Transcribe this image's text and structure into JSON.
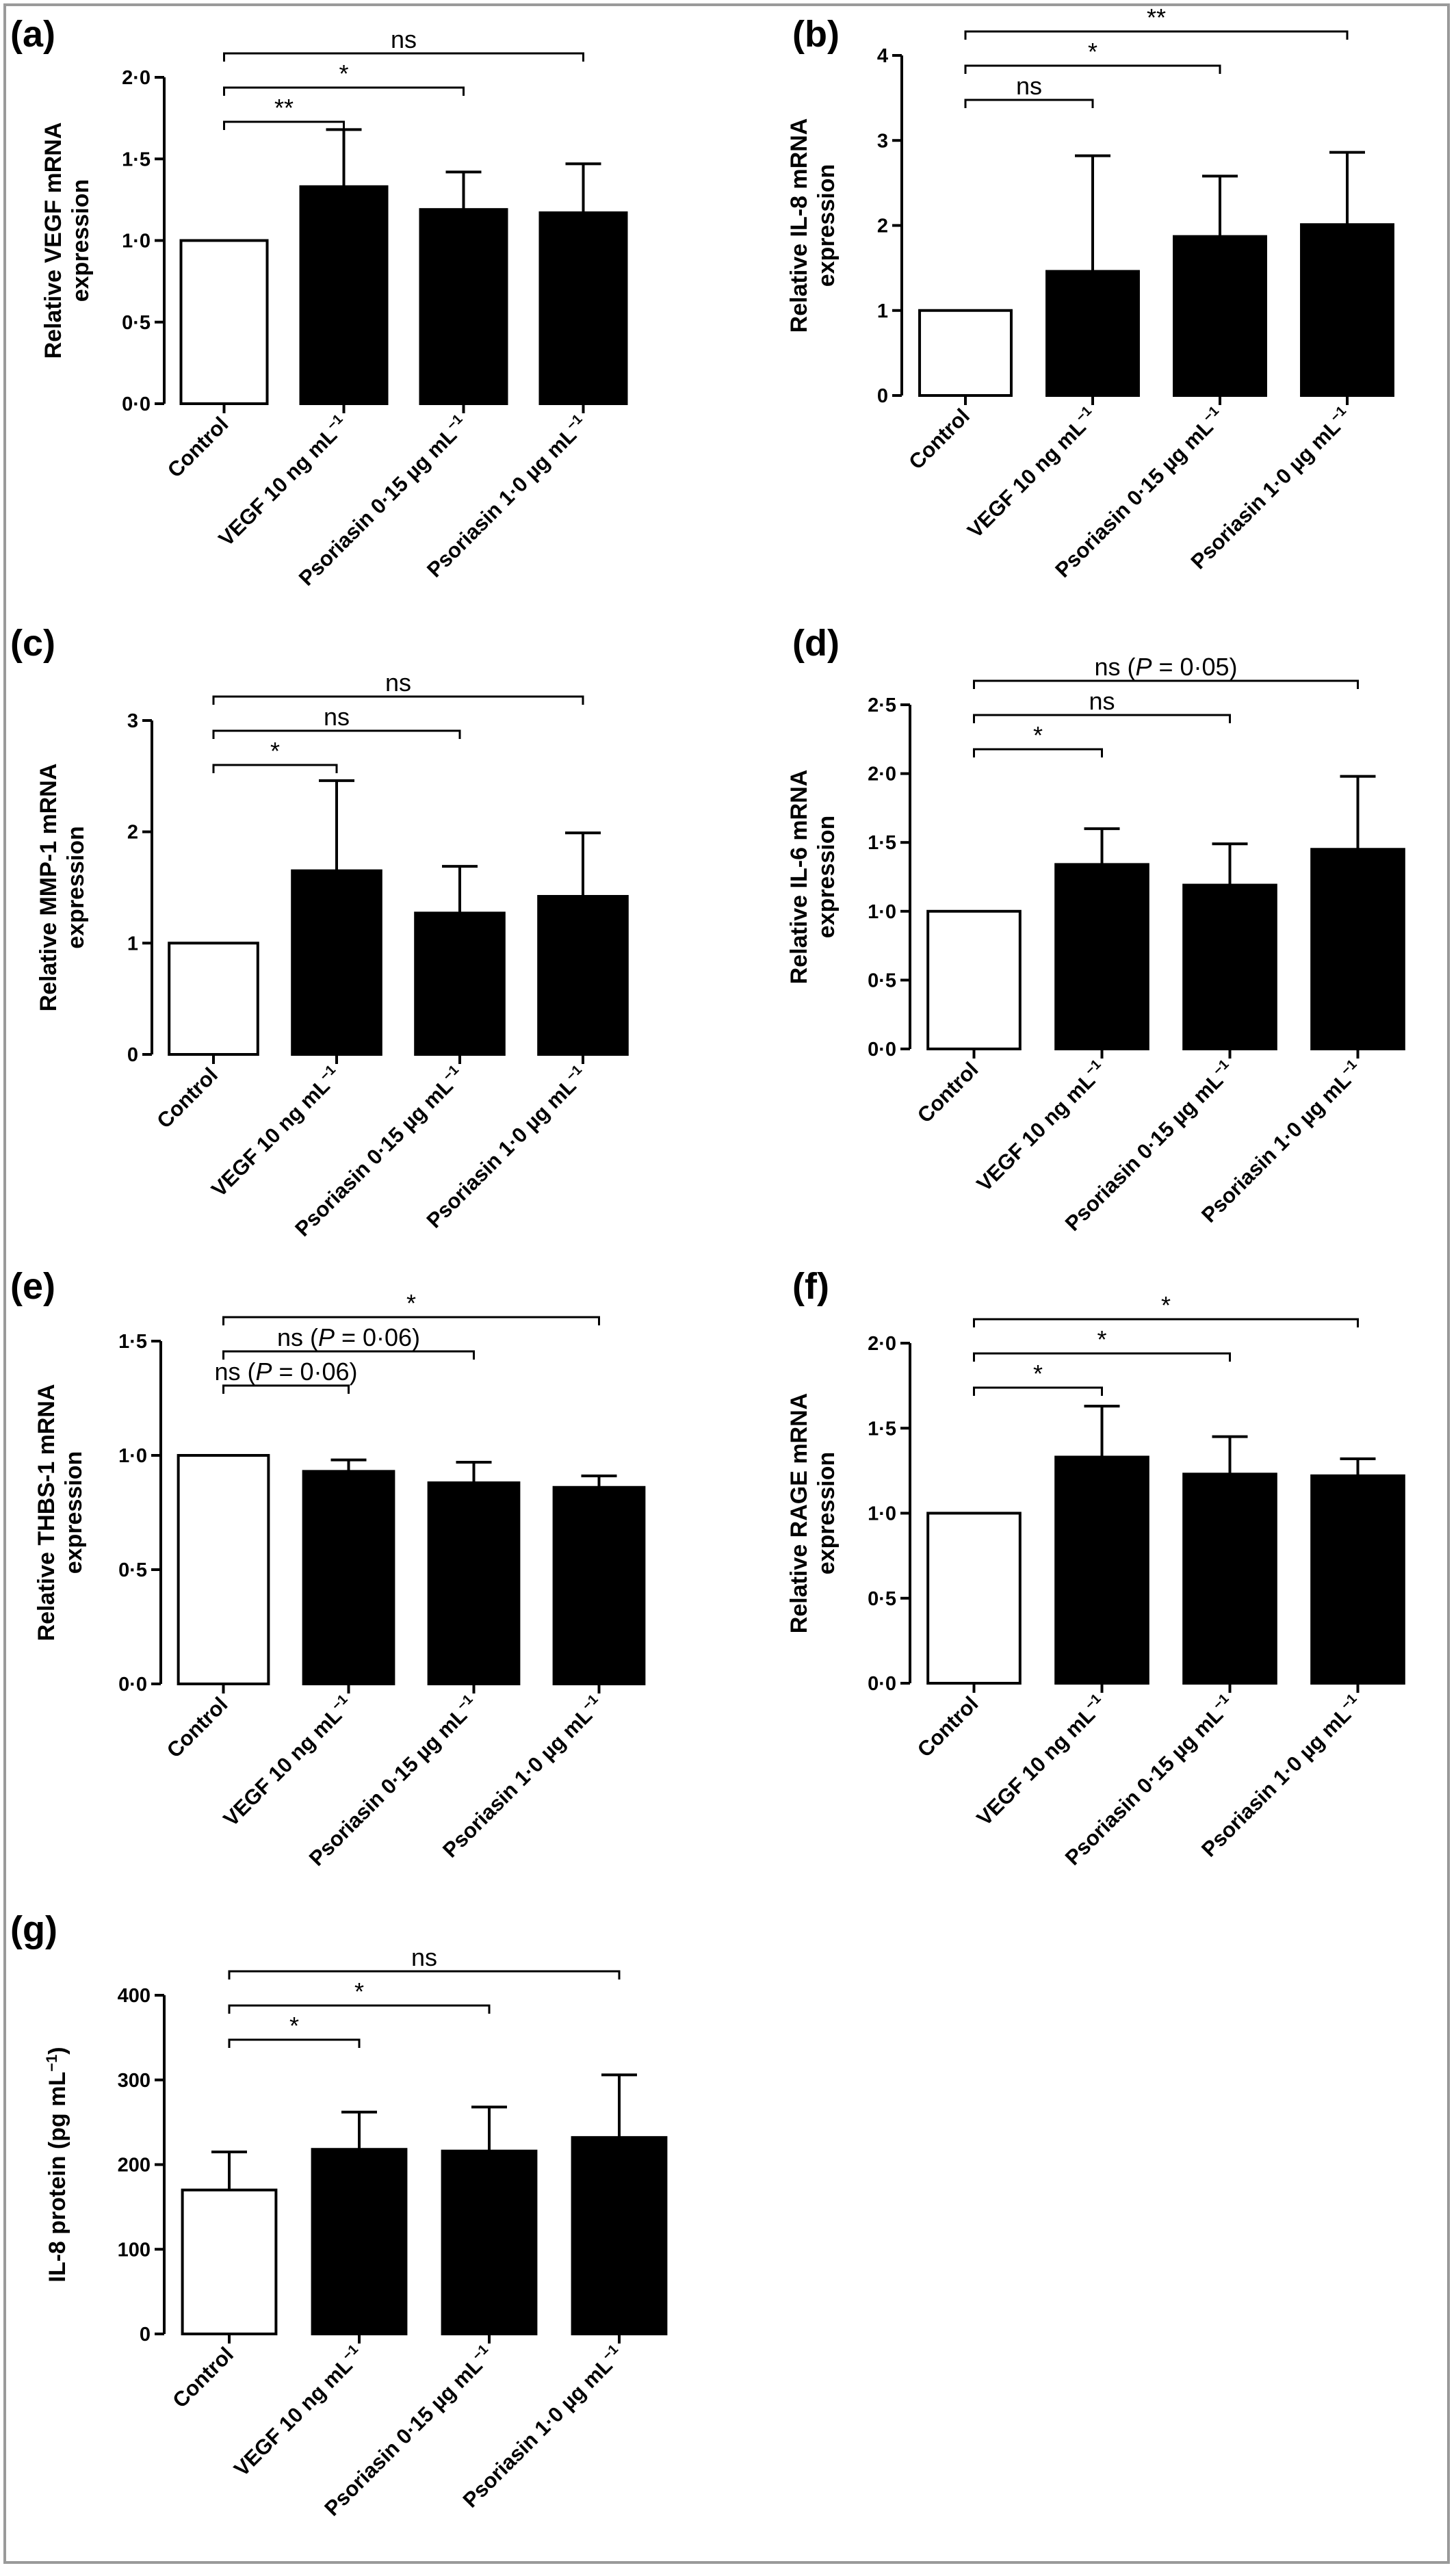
{
  "chart_data": [
    {
      "type": "bar",
      "panel": "(a)",
      "categories": [
        "Control",
        "VEGF 10 ng mL",
        "Psoriasin 0·15 µg mL",
        "Psoriasin 1·0 µg mL"
      ],
      "category_unit_superscript": "−1",
      "ylabel": [
        "Relative VEGF mRNA",
        "expression"
      ],
      "ylim": [
        0,
        2.0
      ],
      "yticks": [
        0,
        0.5,
        1.0,
        1.5,
        2.0
      ],
      "ytick_labels": [
        "0·0",
        "0·5",
        "1·0",
        "1·5",
        "2·0"
      ],
      "values": [
        1.0,
        1.33,
        1.19,
        1.17
      ],
      "errors": [
        0,
        0.35,
        0.23,
        0.3
      ],
      "fills": [
        "#ffffff",
        "#000000",
        "#000000",
        "#000000"
      ],
      "brackets": [
        {
          "from": 0,
          "to": 1,
          "label": "**"
        },
        {
          "from": 0,
          "to": 2,
          "label": "*"
        },
        {
          "from": 0,
          "to": 3,
          "label": "ns"
        }
      ]
    },
    {
      "type": "bar",
      "panel": "(b)",
      "categories": [
        "Control",
        "VEGF 10 ng mL",
        "Psoriasin 0·15 µg mL",
        "Psoriasin 1·0 µg mL"
      ],
      "category_unit_superscript": "−1",
      "ylabel": [
        "Relative IL-8 mRNA",
        "expression"
      ],
      "ylim": [
        0,
        4
      ],
      "yticks": [
        0,
        1,
        2,
        3,
        4
      ],
      "ytick_labels": [
        "0",
        "1",
        "2",
        "3",
        "4"
      ],
      "values": [
        1.0,
        1.46,
        1.87,
        2.01
      ],
      "errors": [
        0,
        1.36,
        0.71,
        0.85
      ],
      "fills": [
        "#ffffff",
        "#000000",
        "#000000",
        "#000000"
      ],
      "brackets": [
        {
          "from": 0,
          "to": 1,
          "label": "ns"
        },
        {
          "from": 0,
          "to": 2,
          "label": "*"
        },
        {
          "from": 0,
          "to": 3,
          "label": "**"
        }
      ]
    },
    {
      "type": "bar",
      "panel": "(c)",
      "categories": [
        "Control",
        "VEGF 10 ng mL",
        "Psoriasin 0·15 µg mL",
        "Psoriasin 1·0 µg mL"
      ],
      "category_unit_superscript": "−1",
      "ylabel": [
        "Relative MMP-1 mRNA",
        "expression"
      ],
      "ylim": [
        0,
        3
      ],
      "yticks": [
        0,
        1,
        2,
        3
      ],
      "ytick_labels": [
        "0",
        "1",
        "2",
        "3"
      ],
      "values": [
        1.0,
        1.65,
        1.27,
        1.42
      ],
      "errors": [
        0,
        0.81,
        0.42,
        0.57
      ],
      "fills": [
        "#ffffff",
        "#000000",
        "#000000",
        "#000000"
      ],
      "brackets": [
        {
          "from": 0,
          "to": 1,
          "label": "*"
        },
        {
          "from": 0,
          "to": 2,
          "label": "ns"
        },
        {
          "from": 0,
          "to": 3,
          "label": "ns"
        }
      ]
    },
    {
      "type": "bar",
      "panel": "(d)",
      "categories": [
        "Control",
        "VEGF 10 ng mL",
        "Psoriasin 0·15 µg mL",
        "Psoriasin 1·0 µg mL"
      ],
      "category_unit_superscript": "−1",
      "ylabel": [
        "Relative IL-6 mRNA",
        "expression"
      ],
      "ylim": [
        0,
        2.5
      ],
      "yticks": [
        0,
        0.5,
        1.0,
        1.5,
        2.0,
        2.5
      ],
      "ytick_labels": [
        "0·0",
        "0·5",
        "1·0",
        "1·5",
        "2·0",
        "2·5"
      ],
      "values": [
        1.0,
        1.34,
        1.19,
        1.45
      ],
      "errors": [
        0,
        0.26,
        0.3,
        0.53
      ],
      "fills": [
        "#ffffff",
        "#000000",
        "#000000",
        "#000000"
      ],
      "brackets": [
        {
          "from": 0,
          "to": 1,
          "label": "*"
        },
        {
          "from": 0,
          "to": 2,
          "label": "ns"
        },
        {
          "from": 0,
          "to": 3,
          "label": "ns (P = 0·05)"
        }
      ]
    },
    {
      "type": "bar",
      "panel": "(e)",
      "categories": [
        "Control",
        "VEGF 10 ng mL",
        "Psoriasin 0·15 µg mL",
        "Psoriasin 1·0 µg mL"
      ],
      "category_unit_superscript": "−1",
      "ylabel": [
        "Relative THBS-1 mRNA",
        "expression"
      ],
      "ylim": [
        0,
        1.5
      ],
      "yticks": [
        0,
        0.5,
        1.0,
        1.5
      ],
      "ytick_labels": [
        "0·0",
        "0·5",
        "1·0",
        "1·5"
      ],
      "values": [
        1.0,
        0.93,
        0.88,
        0.86
      ],
      "errors": [
        0,
        0.05,
        0.09,
        0.05
      ],
      "fills": [
        "#ffffff",
        "#000000",
        "#000000",
        "#000000"
      ],
      "brackets": [
        {
          "from": 0,
          "to": 1,
          "label": "ns (P = 0·06)"
        },
        {
          "from": 0,
          "to": 2,
          "label": "ns (P = 0·06)"
        },
        {
          "from": 0,
          "to": 3,
          "label": "*"
        }
      ]
    },
    {
      "type": "bar",
      "panel": "(f)",
      "categories": [
        "Control",
        "VEGF 10 ng mL",
        "Psoriasin 0·15 µg mL",
        "Psoriasin 1·0 µg mL"
      ],
      "category_unit_superscript": "−1",
      "ylabel": [
        "Relative RAGE mRNA",
        "expression"
      ],
      "ylim": [
        0,
        2.0
      ],
      "yticks": [
        0,
        0.5,
        1.0,
        1.5,
        2.0
      ],
      "ytick_labels": [
        "0·0",
        "0·5",
        "1·0",
        "1·5",
        "2·0"
      ],
      "values": [
        1.0,
        1.33,
        1.23,
        1.22
      ],
      "errors": [
        0,
        0.3,
        0.22,
        0.1
      ],
      "fills": [
        "#ffffff",
        "#000000",
        "#000000",
        "#000000"
      ],
      "brackets": [
        {
          "from": 0,
          "to": 1,
          "label": "*"
        },
        {
          "from": 0,
          "to": 2,
          "label": "*"
        },
        {
          "from": 0,
          "to": 3,
          "label": "*"
        }
      ]
    },
    {
      "type": "bar",
      "panel": "(g)",
      "categories": [
        "Control",
        "VEGF 10 ng mL",
        "Psoriasin 0·15 µg mL",
        "Psoriasin 1·0 µg mL"
      ],
      "category_unit_superscript": "−1",
      "ylabel": [
        "IL-8 protein (pg mL",
        ")"
      ],
      "ylabel_superscript": "−1",
      "ylim": [
        0,
        400
      ],
      "yticks": [
        0,
        100,
        200,
        300,
        400
      ],
      "ytick_labels": [
        "0",
        "100",
        "200",
        "300",
        "400"
      ],
      "values": [
        170,
        218,
        216,
        232
      ],
      "errors": [
        45,
        44,
        52,
        74
      ],
      "fills": [
        "#ffffff",
        "#000000",
        "#000000",
        "#000000"
      ],
      "brackets": [
        {
          "from": 0,
          "to": 1,
          "label": "*"
        },
        {
          "from": 0,
          "to": 2,
          "label": "*"
        },
        {
          "from": 0,
          "to": 3,
          "label": "ns"
        }
      ]
    }
  ]
}
